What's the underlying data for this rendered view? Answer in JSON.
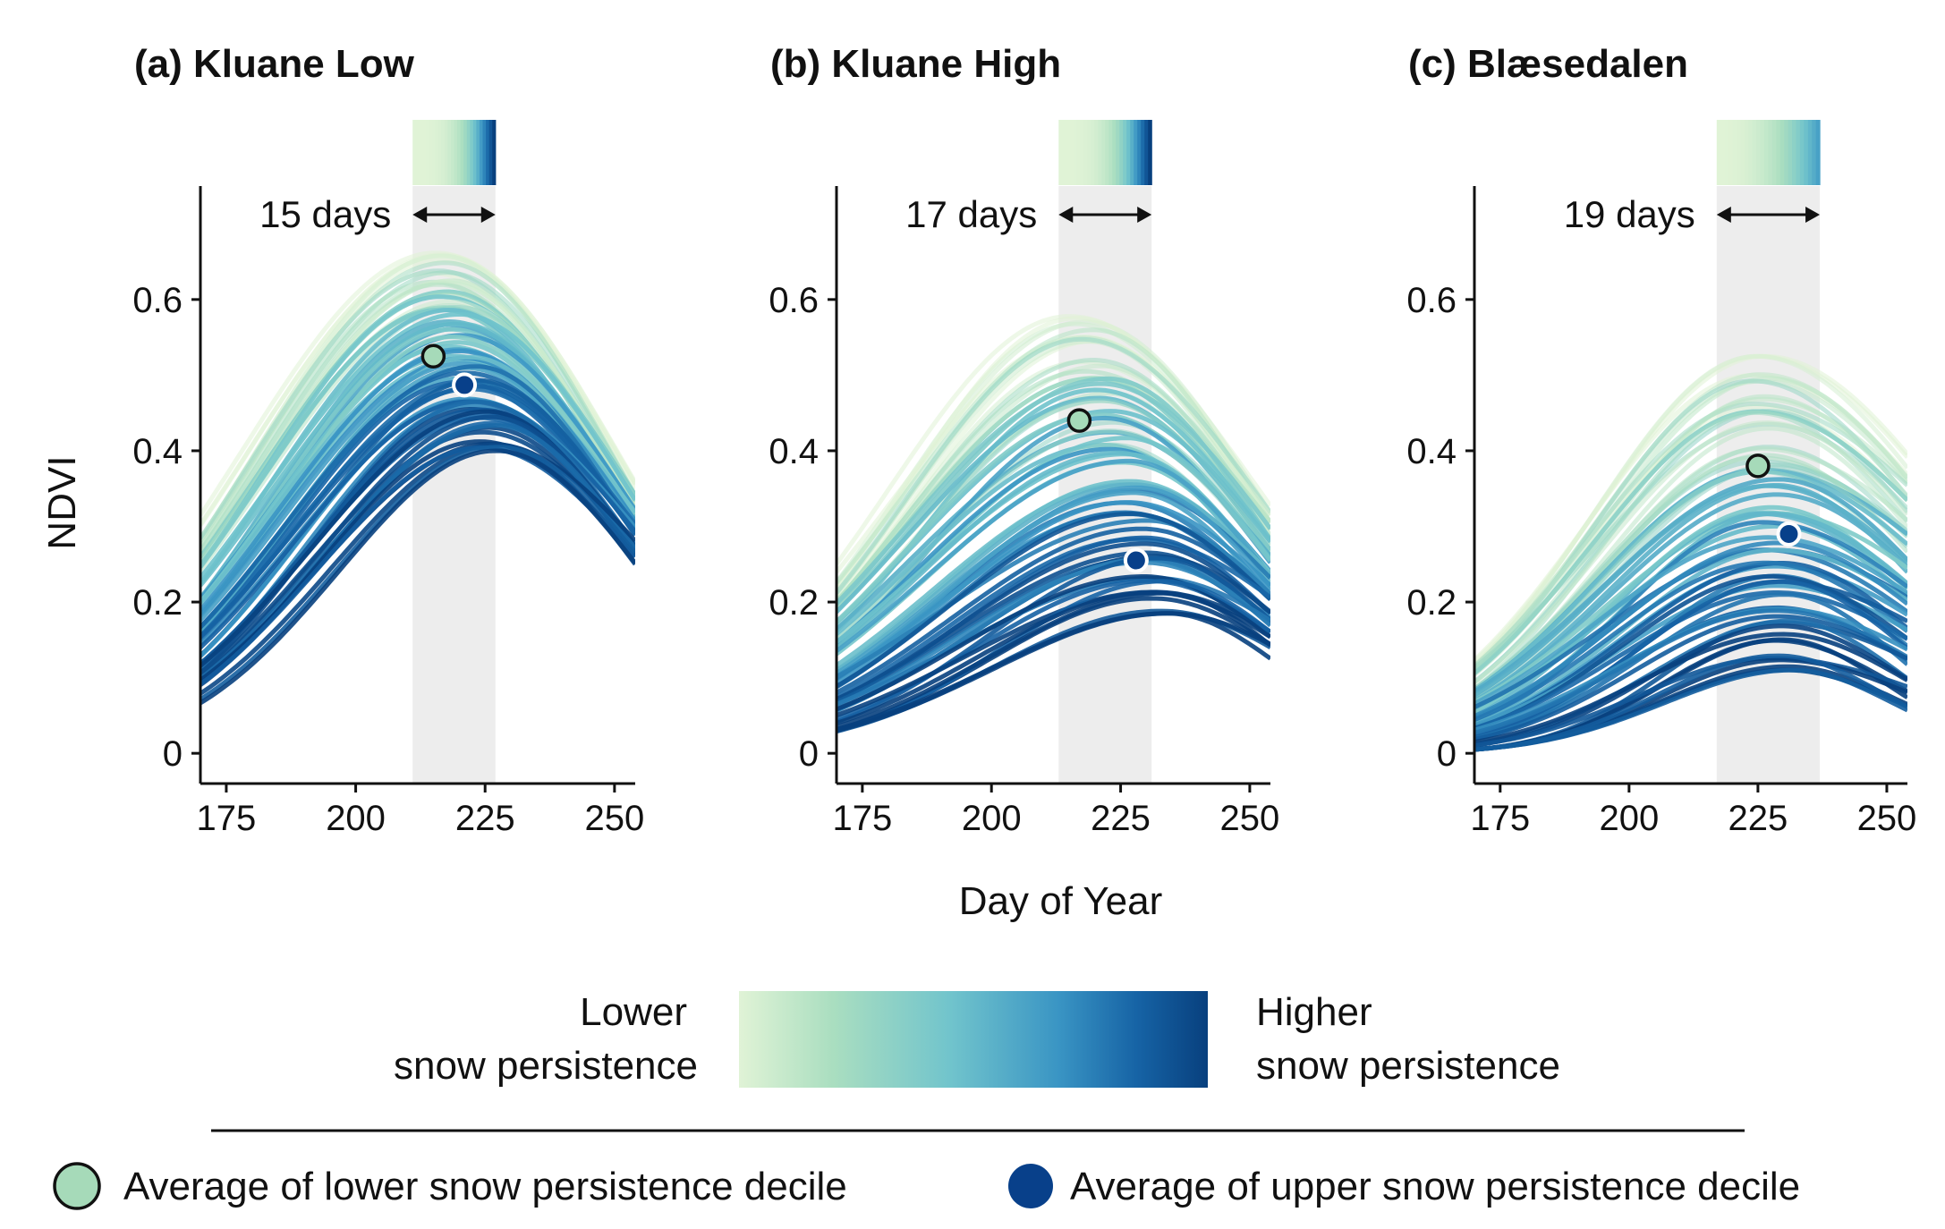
{
  "chart_data": {
    "type": "line",
    "xlabel": "Day of Year",
    "ylabel": "NDVI",
    "xlim": [
      170,
      254
    ],
    "ylim": [
      -0.04,
      0.75
    ],
    "xticks": [
      "175",
      "200",
      "225",
      "250"
    ],
    "yticks": [
      "0",
      "0.2",
      "0.4",
      "0.6"
    ],
    "colors": {
      "gradient": [
        "#e0f3d6",
        "#aadec0",
        "#71c4cc",
        "#3a95c4",
        "#1663a5",
        "#08407e"
      ],
      "low_marker": "#a6dab9",
      "high_marker": "#08408a",
      "band": "#ededed",
      "axis": "#111111"
    },
    "panels": [
      {
        "title": "(a) Kluane Low",
        "range_label": "15 days",
        "band": [
          211,
          227
        ],
        "low_decile_avg": {
          "x": 215,
          "y": 0.525
        },
        "high_decile_avg": {
          "x": 221,
          "y": 0.487
        },
        "curves": {
          "lower": {
            "peak_x": 215,
            "peak_y": 0.665,
            "start_y": 0.3,
            "end_y": 0.35
          },
          "upper": {
            "peak_x": 226,
            "peak_y": 0.4,
            "start_y": 0.07,
            "end_y": 0.26
          }
        }
      },
      {
        "title": "(b) Kluane High",
        "range_label": "17 days",
        "band": [
          213,
          231
        ],
        "low_decile_avg": {
          "x": 217,
          "y": 0.44
        },
        "high_decile_avg": {
          "x": 228,
          "y": 0.255
        },
        "curves": {
          "lower": {
            "peak_x": 217,
            "peak_y": 0.585,
            "start_y": 0.24,
            "end_y": 0.33
          },
          "upper": {
            "peak_x": 233,
            "peak_y": 0.185,
            "start_y": 0.02,
            "end_y": 0.14
          }
        }
      },
      {
        "title": "(c) Blæsedalen",
        "range_label": "19 days",
        "band": [
          217,
          237
        ],
        "low_decile_avg": {
          "x": 225,
          "y": 0.38
        },
        "high_decile_avg": {
          "x": 231,
          "y": 0.29
        },
        "curves": {
          "lower": {
            "peak_x": 225,
            "peak_y": 0.525,
            "start_y": 0.13,
            "end_y": 0.39
          },
          "upper": {
            "peak_x": 230,
            "peak_y": 0.11,
            "start_y": -0.01,
            "end_y": 0.06
          }
        }
      }
    ]
  },
  "legend": {
    "lower_label": "Lower",
    "lower_sub": "snow persistence",
    "higher_label": "Higher",
    "higher_sub": "snow persistence",
    "low_marker_label": "Average of lower snow persistence decile",
    "high_marker_label": "Average of upper snow persistence decile"
  }
}
